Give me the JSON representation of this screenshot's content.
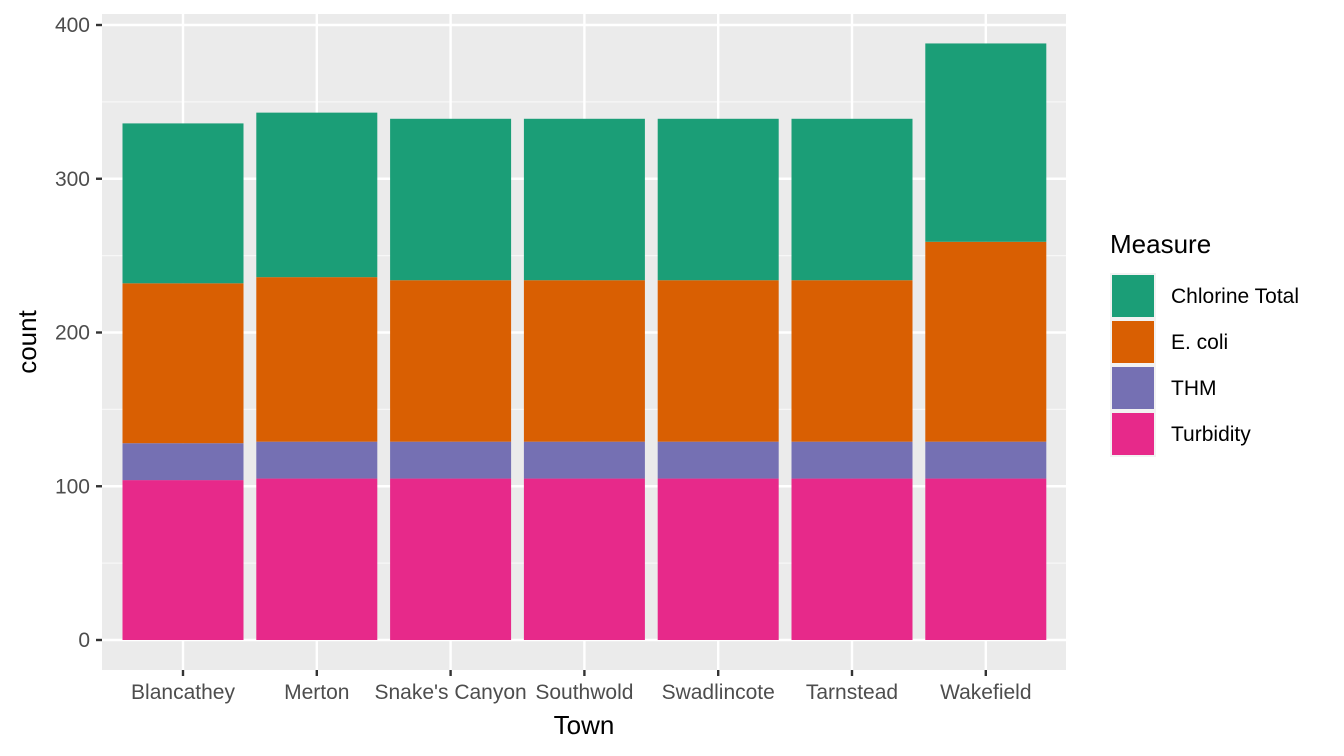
{
  "chart_data": {
    "type": "bar",
    "stacked": true,
    "title": "",
    "xlabel": "Town",
    "ylabel": "count",
    "ylim": [
      0,
      400
    ],
    "yticks": [
      0,
      100,
      200,
      300,
      400
    ],
    "grid": true,
    "categories": [
      "Blancathey",
      "Merton",
      "Snake's Canyon",
      "Southwold",
      "Swadlincote",
      "Tarnstead",
      "Wakefield"
    ],
    "legend": {
      "title": "Measure",
      "position": "right"
    },
    "series": [
      {
        "name": "Turbidity",
        "color": "#E7298A",
        "values": [
          104,
          105,
          105,
          105,
          105,
          105,
          105
        ]
      },
      {
        "name": "THM",
        "color": "#7570B3",
        "values": [
          24,
          24,
          24,
          24,
          24,
          24,
          24
        ]
      },
      {
        "name": "E. coli",
        "color": "#D95F02",
        "values": [
          104,
          107,
          105,
          105,
          105,
          105,
          130
        ]
      },
      {
        "name": "Chlorine Total",
        "color": "#1B9E77",
        "values": [
          104,
          107,
          105,
          105,
          105,
          105,
          129
        ]
      }
    ],
    "legend_order": [
      "Chlorine Total",
      "E. coli",
      "THM",
      "Turbidity"
    ]
  }
}
